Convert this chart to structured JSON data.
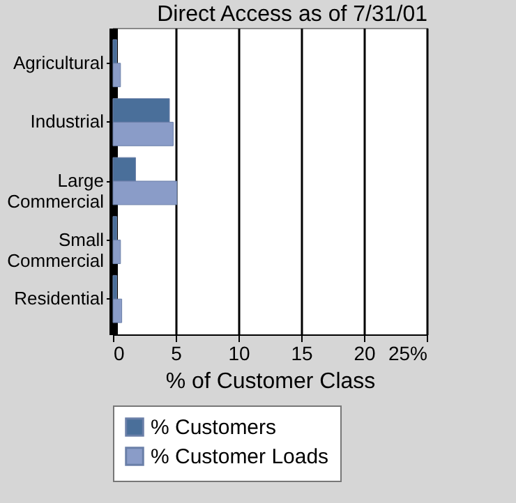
{
  "chart_data": {
    "type": "bar",
    "orientation": "horizontal",
    "title": "Direct Access as of 7/31/01",
    "xlabel": "% of Customer Class",
    "categories": [
      "Agricultural",
      "Industrial",
      "Large Commercial",
      "Small Commercial",
      "Residential"
    ],
    "series": [
      {
        "name": "% Customers",
        "color": "#4a6f9a",
        "values": [
          0.3,
          4.5,
          1.8,
          0.3,
          0.3
        ]
      },
      {
        "name": "% Customer Loads",
        "color": "#8a9cc8",
        "values": [
          0.6,
          4.8,
          5.1,
          0.6,
          0.7
        ]
      }
    ],
    "xlim": [
      0,
      25
    ],
    "xticks": [
      0,
      5,
      10,
      15,
      20,
      {
        "value": 25,
        "label": "25%"
      }
    ],
    "grid": "x",
    "legend": "bottom"
  }
}
